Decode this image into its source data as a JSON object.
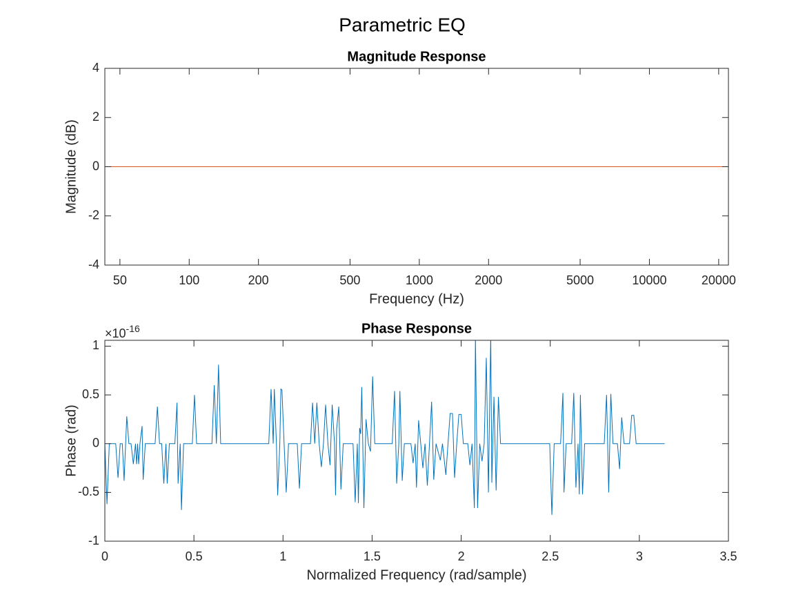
{
  "figure_title": "Parametric EQ",
  "chart_data": [
    {
      "type": "line",
      "title": "Magnitude Response",
      "x_label": "Frequency (Hz)",
      "y_label": "Magnitude (dB)",
      "xscale": "log",
      "xlim": [
        43,
        22050
      ],
      "xticks": [
        50,
        100,
        200,
        500,
        1000,
        2000,
        5000,
        10000,
        20000
      ],
      "ylim": [
        -4,
        4
      ],
      "yticks": [
        -4,
        -2,
        0,
        2,
        4
      ],
      "grid": false,
      "x": [
        43,
        22050
      ],
      "series": [
        {
          "color": "#D95319",
          "values": [
            0,
            0
          ]
        }
      ]
    },
    {
      "type": "line",
      "title": "Phase Response",
      "x_label": "Normalized Frequency (rad/sample)",
      "y_label": "Phase (rad)",
      "y_exponent": {
        "base": "×10",
        "power": "-16"
      },
      "xscale": "linear",
      "xlim": [
        0,
        3.5
      ],
      "xticks": [
        0,
        0.5,
        1,
        1.5,
        2,
        2.5,
        3,
        3.5
      ],
      "ylim": [
        -1,
        1.06
      ],
      "yticks": [
        -1,
        -0.5,
        0,
        0.5,
        1
      ],
      "grid": false,
      "x": [
        0,
        0.012,
        0.025,
        0.061,
        0.074,
        0.086,
        0.098,
        0.108,
        0.123,
        0.135,
        0.147,
        0.16,
        0.172,
        0.178,
        0.184,
        0.19,
        0.197,
        0.209,
        0.215,
        0.227,
        0.282,
        0.295,
        0.307,
        0.319,
        0.331,
        0.343,
        0.35,
        0.362,
        0.393,
        0.405,
        0.411,
        0.423,
        0.43,
        0.442,
        0.491,
        0.503,
        0.515,
        0.601,
        0.614,
        0.626,
        0.638,
        0.65,
        0.92,
        0.933,
        0.945,
        0.951,
        0.963,
        0.97,
        0.982,
        0.988,
        0.994,
        1.006,
        1.018,
        1.031,
        1.08,
        1.092,
        1.104,
        1.154,
        1.166,
        1.178,
        1.19,
        1.203,
        1.215,
        1.227,
        1.239,
        1.252,
        1.264,
        1.276,
        1.289,
        1.295,
        1.301,
        1.313,
        1.325,
        1.338,
        1.393,
        1.405,
        1.417,
        1.423,
        1.43,
        1.436,
        1.442,
        1.454,
        1.466,
        1.479,
        1.491,
        1.503,
        1.515,
        1.613,
        1.626,
        1.638,
        1.65,
        1.656,
        1.669,
        1.681,
        1.718,
        1.73,
        1.742,
        1.749,
        1.761,
        1.773,
        1.785,
        1.797,
        1.81,
        1.822,
        1.834,
        1.846,
        1.859,
        1.883,
        1.895,
        1.914,
        1.926,
        1.938,
        1.951,
        1.963,
        1.975,
        1.987,
        2.0,
        2.012,
        2.037,
        2.049,
        2.061,
        2.074,
        2.08,
        2.092,
        2.104,
        2.117,
        2.129,
        2.141,
        2.153,
        2.16,
        2.166,
        2.172,
        2.184,
        2.196,
        2.209,
        2.221,
        2.497,
        2.509,
        2.522,
        2.558,
        2.571,
        2.577,
        2.589,
        2.62,
        2.632,
        2.644,
        2.656,
        2.663,
        2.669,
        2.681,
        2.693,
        2.803,
        2.816,
        2.828,
        2.84,
        2.852,
        2.877,
        2.889,
        2.901,
        2.914,
        2.945,
        2.957,
        2.969,
        2.982,
        3.142
      ],
      "series": [
        {
          "color": "#0072BD",
          "values": [
            0,
            -0.62,
            0,
            0,
            -0.35,
            0,
            0,
            -0.38,
            0.28,
            0,
            0,
            -0.21,
            0,
            -0.21,
            0,
            -0.21,
            0,
            0.18,
            -0.37,
            0,
            0,
            0.38,
            0,
            0,
            -0.41,
            0,
            -0.41,
            0,
            0,
            0.42,
            -0.41,
            0,
            -0.68,
            0,
            0,
            0.5,
            0,
            0,
            0.6,
            0,
            0.81,
            0,
            0,
            0.56,
            0,
            0.56,
            0,
            -0.53,
            0,
            0.56,
            0.55,
            0,
            -0.5,
            0,
            0,
            -0.46,
            0,
            0,
            0.42,
            0,
            0.42,
            0,
            -0.24,
            0,
            0.4,
            0,
            -0.22,
            0.4,
            0,
            -0.53,
            0.15,
            0.38,
            -0.47,
            0,
            0,
            -0.6,
            0,
            -0.61,
            0.16,
            0.1,
            0.58,
            -0.66,
            0.25,
            0,
            -0.08,
            0.69,
            0,
            0,
            0.54,
            -0.41,
            0,
            0.54,
            -0.38,
            0,
            0,
            -0.2,
            0,
            -0.45,
            0.24,
            0,
            -0.25,
            0,
            -0.43,
            0,
            0.43,
            -0.37,
            0,
            -0.17,
            0,
            -0.32,
            0,
            0.31,
            0.31,
            -0.35,
            0,
            0.3,
            0.3,
            0,
            0,
            -0.22,
            0,
            -0.66,
            1.1,
            -0.66,
            0,
            -0.18,
            0,
            0.88,
            -0.5,
            0.42,
            1.1,
            -0.4,
            0.48,
            -0.48,
            0.48,
            0,
            0,
            -0.73,
            0,
            0,
            0.52,
            -0.5,
            0,
            0,
            0.52,
            -0.45,
            0,
            -0.52,
            0.5,
            -0.52,
            0,
            0,
            0.5,
            -0.5,
            0.51,
            0,
            0,
            -0.26,
            0.27,
            0,
            0,
            0.29,
            0.29,
            0,
            0
          ]
        }
      ]
    }
  ]
}
